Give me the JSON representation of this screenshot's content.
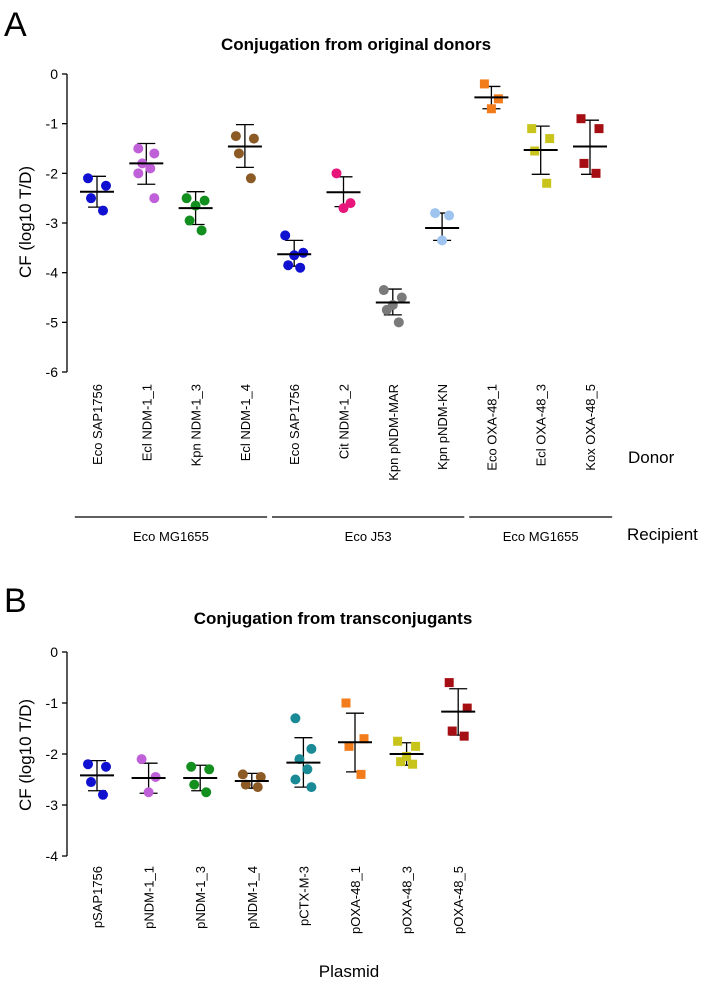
{
  "chart_data": [
    {
      "panel": "A",
      "type": "scatter",
      "title": "Conjugation from original donors",
      "ylabel": "CF (log10 T/D)",
      "ylim": [
        -6,
        0
      ],
      "yticks": [
        "0",
        "-1",
        "-2",
        "-3",
        "-4",
        "-5",
        "-6"
      ],
      "side_labels": {
        "donor": "Donor",
        "recipient": "Recipient"
      },
      "groups": [
        {
          "label": "Eco MG1655",
          "first": 0,
          "last": 3
        },
        {
          "label": "Eco J53",
          "first": 4,
          "last": 7
        },
        {
          "label": "Eco MG1655",
          "first": 8,
          "last": 10
        }
      ],
      "series": [
        {
          "name": "Eco SAP1756",
          "marker": "circle",
          "color": "#1010d0",
          "mean": -2.37,
          "sd_low": -2.68,
          "sd_high": -2.06,
          "values": [
            -2.1,
            -2.25,
            -2.5,
            -2.75
          ]
        },
        {
          "name": "Ecl NDM-1_1",
          "marker": "circle",
          "color": "#c060d8",
          "mean": -1.8,
          "sd_low": -2.22,
          "sd_high": -1.4,
          "values": [
            -1.5,
            -1.6,
            -1.8,
            -1.9,
            -2.0,
            -2.5
          ]
        },
        {
          "name": "Kpn NDM-1_3",
          "marker": "circle",
          "color": "#138f20",
          "mean": -2.7,
          "sd_low": -3.03,
          "sd_high": -2.37,
          "values": [
            -2.5,
            -2.55,
            -2.65,
            -2.95,
            -3.15
          ]
        },
        {
          "name": "Ecl NDM-1_4",
          "marker": "circle",
          "color": "#8b5a25",
          "mean": -1.46,
          "sd_low": -1.88,
          "sd_high": -1.02,
          "values": [
            -1.25,
            -1.3,
            -1.6,
            -2.1
          ]
        },
        {
          "name": "Eco SAP1756",
          "marker": "circle",
          "color": "#1010d0",
          "mean": -3.63,
          "sd_low": -3.87,
          "sd_high": -3.35,
          "values": [
            -3.25,
            -3.6,
            -3.65,
            -3.85,
            -3.9
          ]
        },
        {
          "name": "Cit NDM-1_2",
          "marker": "circle",
          "color": "#e8157a",
          "mean": -2.38,
          "sd_low": -2.67,
          "sd_high": -2.07,
          "values": [
            -2.0,
            -2.6,
            -2.7
          ]
        },
        {
          "name": "Kpn pNDM-MAR",
          "marker": "circle",
          "color": "#7a7a7a",
          "mean": -4.6,
          "sd_low": -4.85,
          "sd_high": -4.33,
          "values": [
            -4.35,
            -4.5,
            -4.65,
            -4.75,
            -5.0
          ]
        },
        {
          "name": "Kpn pNDM-KN",
          "marker": "circle",
          "color": "#9ec3ee",
          "mean": -3.1,
          "sd_low": -3.35,
          "sd_high": -2.8,
          "values": [
            -2.8,
            -2.85,
            -3.35
          ]
        },
        {
          "name": "Eco OXA-48_1",
          "marker": "square",
          "color": "#f27b1a",
          "mean": -0.47,
          "sd_low": -0.7,
          "sd_high": -0.25,
          "values": [
            -0.2,
            -0.5,
            -0.7
          ]
        },
        {
          "name": "Ecl OXA-48_3",
          "marker": "square",
          "color": "#c8c41c",
          "mean": -1.53,
          "sd_low": -2.02,
          "sd_high": -1.05,
          "values": [
            -1.1,
            -1.3,
            -1.55,
            -2.2
          ]
        },
        {
          "name": "Kox OXA-48_5",
          "marker": "square",
          "color": "#a50e12",
          "mean": -1.46,
          "sd_low": -2.02,
          "sd_high": -0.93,
          "values": [
            -0.9,
            -1.1,
            -1.8,
            -2.0
          ]
        }
      ]
    },
    {
      "panel": "B",
      "type": "scatter",
      "title": "Conjugation from transconjugants",
      "ylabel": "CF (log10 T/D)",
      "xlabel": "Plasmid",
      "ylim": [
        -4,
        0
      ],
      "yticks": [
        "0",
        "-1",
        "-2",
        "-3",
        "-4"
      ],
      "series": [
        {
          "name": "pSAP1756",
          "marker": "circle",
          "color": "#1010d0",
          "mean": -2.42,
          "sd_low": -2.72,
          "sd_high": -2.13,
          "values": [
            -2.2,
            -2.25,
            -2.55,
            -2.8
          ]
        },
        {
          "name": "pNDM-1_1",
          "marker": "circle",
          "color": "#c060d8",
          "mean": -2.47,
          "sd_low": -2.77,
          "sd_high": -2.18,
          "values": [
            -2.1,
            -2.45,
            -2.75
          ]
        },
        {
          "name": "pNDM-1_3",
          "marker": "circle",
          "color": "#138f20",
          "mean": -2.47,
          "sd_low": -2.72,
          "sd_high": -2.22,
          "values": [
            -2.25,
            -2.3,
            -2.6,
            -2.75
          ]
        },
        {
          "name": "pNDM-1_4",
          "marker": "circle",
          "color": "#8b5a25",
          "mean": -2.53,
          "sd_low": -2.67,
          "sd_high": -2.38,
          "values": [
            -2.4,
            -2.45,
            -2.6,
            -2.65
          ]
        },
        {
          "name": "pCTX-M-3",
          "marker": "circle",
          "color": "#1a8a96",
          "mean": -2.17,
          "sd_low": -2.65,
          "sd_high": -1.68,
          "values": [
            -1.3,
            -1.9,
            -2.1,
            -2.3,
            -2.5,
            -2.65
          ]
        },
        {
          "name": "pOXA-48_1",
          "marker": "square",
          "color": "#f27b1a",
          "mean": -1.77,
          "sd_low": -2.35,
          "sd_high": -1.2,
          "values": [
            -1.0,
            -1.7,
            -1.85,
            -2.4
          ]
        },
        {
          "name": "pOXA-48_3",
          "marker": "square",
          "color": "#c8c41c",
          "mean": -2.0,
          "sd_low": -2.22,
          "sd_high": -1.78,
          "values": [
            -1.75,
            -1.85,
            -2.05,
            -2.15,
            -2.2
          ]
        },
        {
          "name": "pOXA-48_5",
          "marker": "square",
          "color": "#a50e12",
          "mean": -1.17,
          "sd_low": -1.63,
          "sd_high": -0.72,
          "values": [
            -0.6,
            -1.1,
            -1.55,
            -1.65
          ]
        }
      ]
    }
  ]
}
